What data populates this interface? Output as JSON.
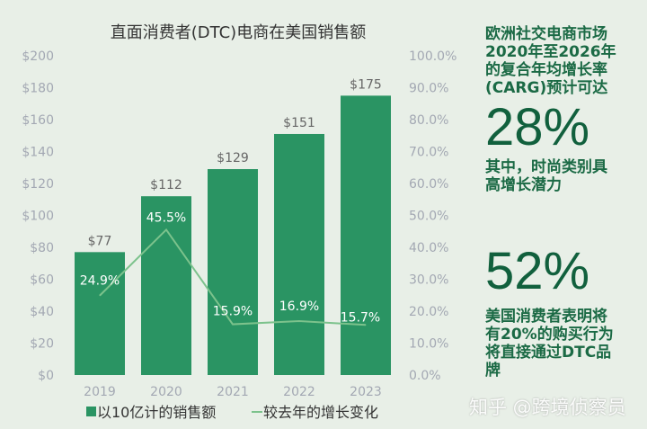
{
  "chart_data": {
    "type": "bar",
    "title": "直面消费者(DTC)电商在美国销售额",
    "categories": [
      "2019",
      "2020",
      "2021",
      "2022",
      "2023"
    ],
    "series": [
      {
        "name": "以10亿计的销售额",
        "type": "bar",
        "values": [
          77,
          112,
          129,
          151,
          175
        ],
        "labels": [
          "$77",
          "$112",
          "$129",
          "$151",
          "$175"
        ],
        "color": "#2a9463"
      },
      {
        "name": "较去年的增长变化",
        "type": "line",
        "values": [
          24.9,
          45.5,
          15.9,
          16.9,
          15.7
        ],
        "labels": [
          "24.9%",
          "45.5%",
          "15.9%",
          "16.9%",
          "15.7%"
        ],
        "color": "#7cc28c"
      }
    ],
    "ylim": [
      0,
      200
    ],
    "y2lim": [
      0,
      100
    ],
    "yticks": [
      "$0",
      "$20",
      "$40",
      "$60",
      "$80",
      "$100",
      "$120",
      "$140",
      "$160",
      "$180",
      "$200"
    ],
    "y2ticks": [
      "0.0%",
      "10.0%",
      "20.0%",
      "30.0%",
      "40.0%",
      "50.0%",
      "60.0%",
      "70.0%",
      "80.0%",
      "90.0%",
      "100.0%"
    ],
    "legend_position": "bottom"
  },
  "side": {
    "text1": "欧洲社交电商市场2020年至2026年的复合年均增长率(CARG)预计可达",
    "stat1": "28%",
    "text2": "其中，时尚类别具高增长潜力",
    "stat2": "52%",
    "text3": "美国消费者表明将有20%的购买行为将直接通过DTC品牌"
  },
  "watermark": "知乎 @跨境侦察员"
}
